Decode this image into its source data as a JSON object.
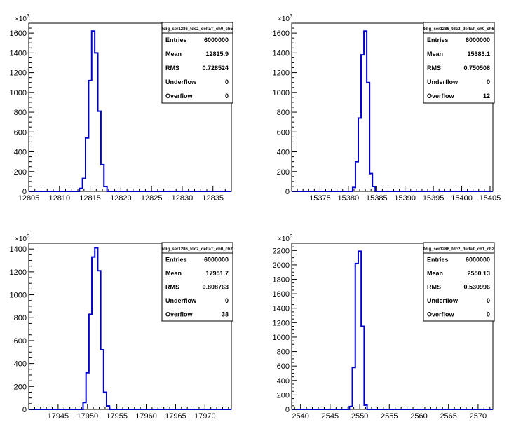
{
  "chart_data": [
    {
      "type": "histogram",
      "title": "tdig_ser1286_tdc2_deltaT_ch0_ch5",
      "xlim": [
        12805,
        12838
      ],
      "ylim": [
        0,
        1700
      ],
      "y_multiplier": "10^3",
      "x_ticks": [
        12805,
        12810,
        12815,
        12820,
        12825,
        12830,
        12835
      ],
      "y_ticks": [
        0,
        200,
        400,
        600,
        800,
        1000,
        1200,
        1400,
        1600
      ],
      "bin_width": 0.5,
      "bins": [
        {
          "x": 12813.5,
          "y": 30
        },
        {
          "x": 12814.0,
          "y": 130
        },
        {
          "x": 12814.5,
          "y": 540
        },
        {
          "x": 12815.0,
          "y": 1120
        },
        {
          "x": 12815.5,
          "y": 1620
        },
        {
          "x": 12816.0,
          "y": 1400
        },
        {
          "x": 12816.5,
          "y": 810
        },
        {
          "x": 12817.0,
          "y": 270
        },
        {
          "x": 12817.5,
          "y": 50
        }
      ],
      "stats": {
        "title": "tdig_ser1286_tdc2_deltaT_ch0_ch5",
        "rows": [
          {
            "label": "Entries",
            "value": "6000000"
          },
          {
            "label": "Mean",
            "value": "12815.9"
          },
          {
            "label": "RMS",
            "value": "0.728524"
          },
          {
            "label": "Underflow",
            "value": "0"
          },
          {
            "label": "Overflow",
            "value": "0"
          }
        ]
      }
    },
    {
      "type": "histogram",
      "title": "tdig_ser1286_tdc2_deltaT_ch0_ch6",
      "xlim": [
        15370,
        15405.5
      ],
      "ylim": [
        0,
        1700
      ],
      "y_multiplier": "10^3",
      "x_ticks": [
        15375,
        15380,
        15385,
        15390,
        15395,
        15400,
        15405
      ],
      "y_ticks": [
        0,
        200,
        400,
        600,
        800,
        1000,
        1200,
        1400,
        1600
      ],
      "bin_width": 0.5,
      "bins": [
        {
          "x": 15381.0,
          "y": 40
        },
        {
          "x": 15381.5,
          "y": 300
        },
        {
          "x": 15382.0,
          "y": 740
        },
        {
          "x": 15382.5,
          "y": 1380
        },
        {
          "x": 15383.0,
          "y": 1620
        },
        {
          "x": 15383.5,
          "y": 1100
        },
        {
          "x": 15384.0,
          "y": 180
        },
        {
          "x": 15384.5,
          "y": 50
        }
      ],
      "stats": {
        "title": "tdig_ser1286_tdc2_deltaT_ch0_ch6",
        "rows": [
          {
            "label": "Entries",
            "value": "6000000"
          },
          {
            "label": "Mean",
            "value": "15383.1"
          },
          {
            "label": "RMS",
            "value": "0.750508"
          },
          {
            "label": "Underflow",
            "value": "0"
          },
          {
            "label": "Overflow",
            "value": "12"
          }
        ]
      }
    },
    {
      "type": "histogram",
      "title": "tdig_ser1286_tdc2_deltaT_ch0_ch7",
      "xlim": [
        17940,
        17974.5
      ],
      "ylim": [
        0,
        1450
      ],
      "y_multiplier": "10^3",
      "x_ticks": [
        17945,
        17950,
        17955,
        17960,
        17965,
        17970
      ],
      "y_ticks": [
        0,
        200,
        400,
        600,
        800,
        1000,
        1200,
        1400
      ],
      "bin_width": 0.5,
      "bins": [
        {
          "x": 17949.5,
          "y": 60
        },
        {
          "x": 17950.0,
          "y": 320
        },
        {
          "x": 17950.5,
          "y": 830
        },
        {
          "x": 17951.0,
          "y": 1330
        },
        {
          "x": 17951.5,
          "y": 1410
        },
        {
          "x": 17952.0,
          "y": 1210
        },
        {
          "x": 17952.5,
          "y": 520
        },
        {
          "x": 17953.0,
          "y": 150
        },
        {
          "x": 17953.5,
          "y": 30
        }
      ],
      "stats": {
        "title": "tdig_ser1286_tdc2_deltaT_ch0_ch7",
        "rows": [
          {
            "label": "Entries",
            "value": "6000000"
          },
          {
            "label": "Mean",
            "value": "17951.7"
          },
          {
            "label": "RMS",
            "value": "0.808763"
          },
          {
            "label": "Underflow",
            "value": "0"
          },
          {
            "label": "Overflow",
            "value": "38"
          }
        ]
      }
    },
    {
      "type": "histogram",
      "title": "tdig_ser1286_tdc2_deltaT_ch1_ch2",
      "xlim": [
        2538.5,
        2572.5
      ],
      "ylim": [
        0,
        2300
      ],
      "y_multiplier": "10^3",
      "x_ticks": [
        2540,
        2545,
        2550,
        2555,
        2560,
        2565,
        2570
      ],
      "y_ticks": [
        0,
        200,
        400,
        600,
        800,
        1000,
        1200,
        1400,
        1600,
        1800,
        2000,
        2200
      ],
      "bin_width": 0.5,
      "bins": [
        {
          "x": 2548.5,
          "y": 40
        },
        {
          "x": 2549.0,
          "y": 580
        },
        {
          "x": 2549.5,
          "y": 2020
        },
        {
          "x": 2550.0,
          "y": 2190
        },
        {
          "x": 2550.5,
          "y": 1150
        },
        {
          "x": 2551.0,
          "y": 60
        }
      ],
      "stats": {
        "title": "tdig_ser1286_tdc2_deltaT_ch1_ch2",
        "rows": [
          {
            "label": "Entries",
            "value": "6000000"
          },
          {
            "label": "Mean",
            "value": "2550.13"
          },
          {
            "label": "RMS",
            "value": "0.530996"
          },
          {
            "label": "Underflow",
            "value": "0"
          },
          {
            "label": "Overflow",
            "value": "0"
          }
        ]
      }
    }
  ]
}
